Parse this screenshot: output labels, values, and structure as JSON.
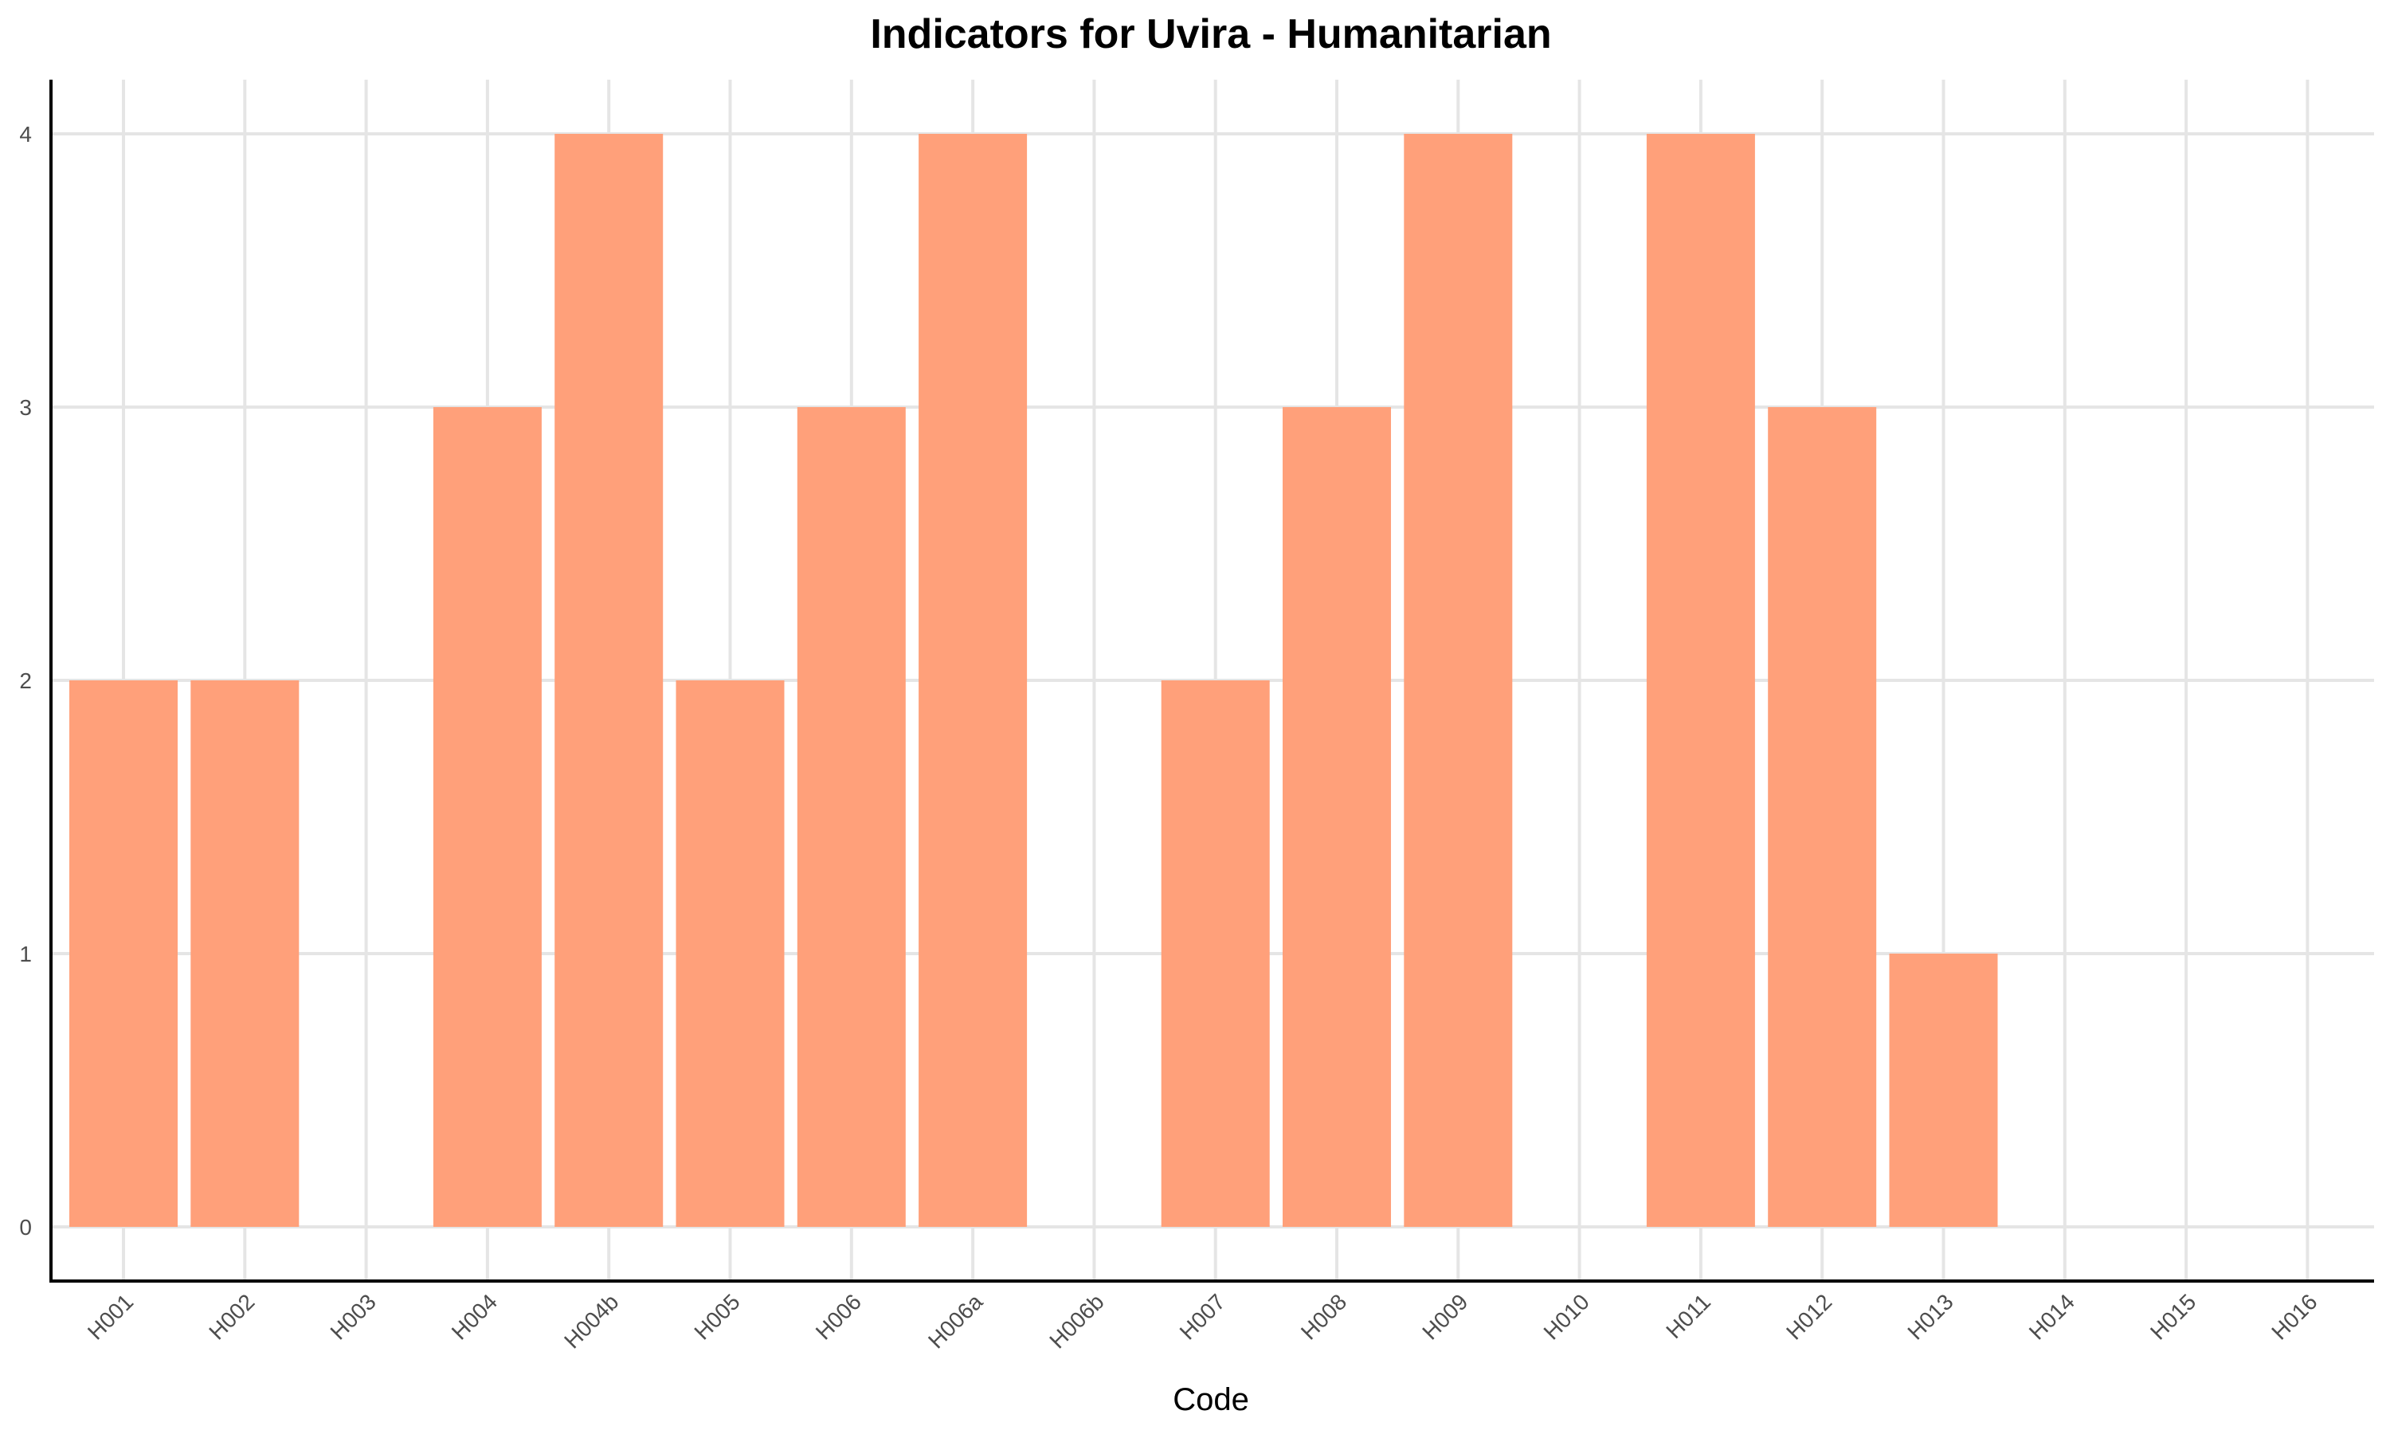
{
  "chart_data": {
    "type": "bar",
    "title": "Indicators for Uvira - Humanitarian",
    "xlabel": "Code",
    "ylabel": "",
    "categories": [
      "H001",
      "H002",
      "H003",
      "H004",
      "H004b",
      "H005",
      "H006",
      "H006a",
      "H006b",
      "H007",
      "H008",
      "H009",
      "H010",
      "H011",
      "H012",
      "H013",
      "H014",
      "H015",
      "H016"
    ],
    "values": [
      2,
      2,
      0,
      3,
      4,
      2,
      3,
      4,
      0,
      2,
      3,
      4,
      0,
      4,
      3,
      1,
      0,
      0,
      0
    ],
    "ylim": [
      0,
      4
    ],
    "yticks": [
      0,
      1,
      2,
      3,
      4
    ],
    "grid": true,
    "bar_color": "#ffa07a"
  }
}
